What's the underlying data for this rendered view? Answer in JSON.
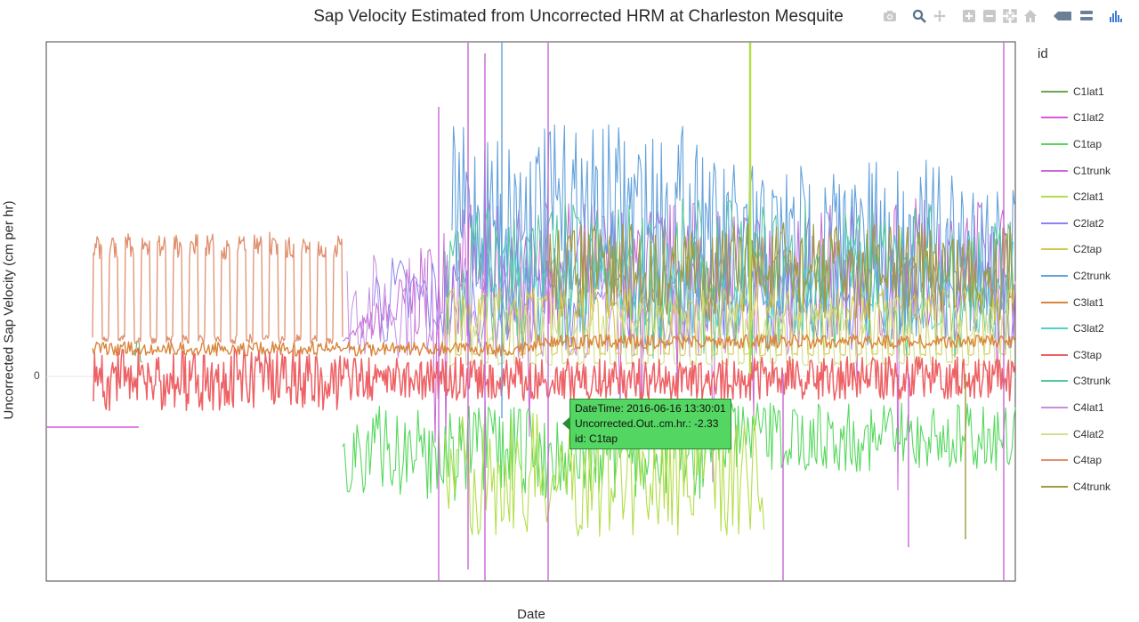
{
  "chart_data": {
    "type": "line",
    "title": "Sap Velocity Estimated from Uncorrected HRM at Charleston Mesquite",
    "xlabel": "Date",
    "ylabel": "Uncorrected Sap Velocity (cm per hr)",
    "ytick_labels": [
      "0"
    ],
    "legend_title": "id",
    "legend_position": "right",
    "series": [
      {
        "name": "C1lat1",
        "color": "#6aa84f"
      },
      {
        "name": "C1lat2",
        "color": "#d959d9"
      },
      {
        "name": "C1tap",
        "color": "#56d85e"
      },
      {
        "name": "C1trunk",
        "color": "#c865d6"
      },
      {
        "name": "C2lat1",
        "color": "#b3de49"
      },
      {
        "name": "C2lat2",
        "color": "#8a83ef"
      },
      {
        "name": "C2tap",
        "color": "#d4c84a"
      },
      {
        "name": "C2trunk",
        "color": "#64a2dc"
      },
      {
        "name": "C3lat1",
        "color": "#d9853b"
      },
      {
        "name": "C3lat2",
        "color": "#4dd1c8"
      },
      {
        "name": "C3tap",
        "color": "#ee6165"
      },
      {
        "name": "C3trunk",
        "color": "#52c997"
      },
      {
        "name": "C4lat1",
        "color": "#c58ee0"
      },
      {
        "name": "C4lat2",
        "color": "#d2e08b"
      },
      {
        "name": "C4tap",
        "color": "#e0906f"
      },
      {
        "name": "C4trunk",
        "color": "#a29a3e"
      }
    ],
    "tooltip": {
      "datetime": "DateTime: 2016-06-16 13:30:01",
      "value": "Uncorrected.Out..cm.hr.: -2.33",
      "id": "id: C1tap"
    }
  },
  "modebar": {
    "buttons": [
      "camera-icon",
      "zoom-icon",
      "pan-icon",
      "zoom-in-icon",
      "zoom-out-icon",
      "autoscale-icon",
      "reset-axes-icon",
      "hover-closest-icon",
      "hover-compare-icon",
      "plotly-logo-icon"
    ]
  }
}
